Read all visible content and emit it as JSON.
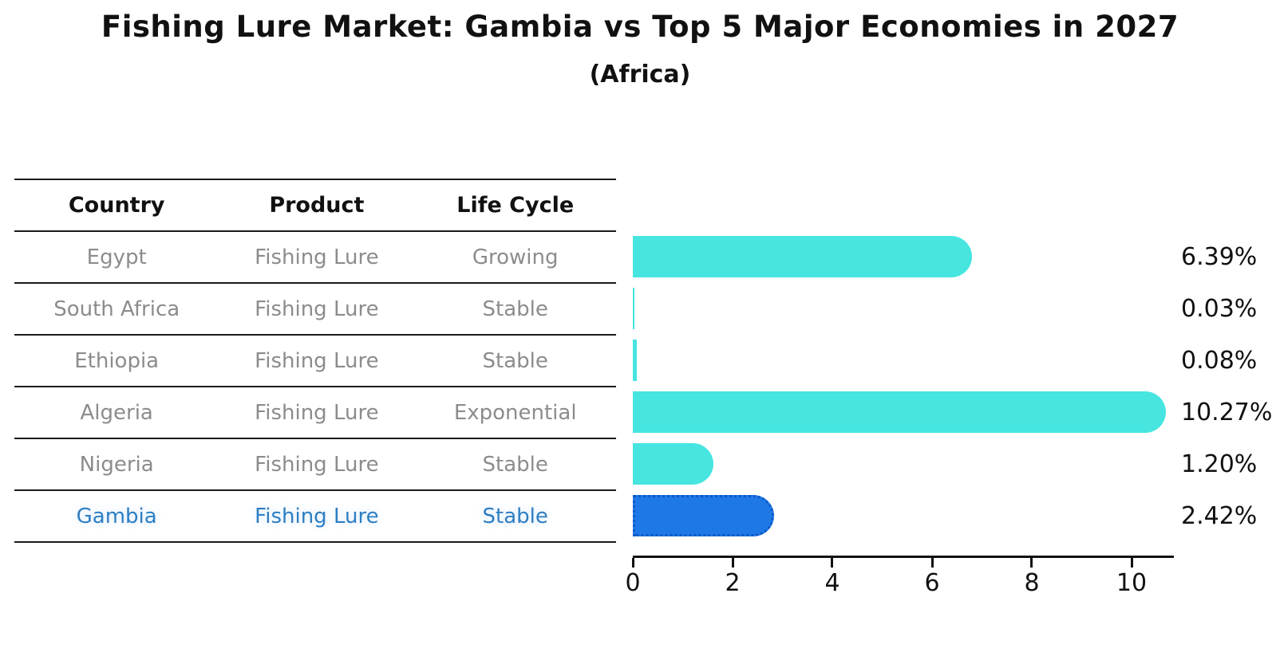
{
  "title": "Fishing Lure Market: Gambia vs Top 5 Major Economies in 2027",
  "subtitle": "(Africa)",
  "table": {
    "headers": [
      "Country",
      "Product",
      "Life Cycle"
    ],
    "rows": [
      {
        "country": "Egypt",
        "product": "Fishing Lure",
        "life_cycle": "Growing",
        "highlighted": false
      },
      {
        "country": "South Africa",
        "product": "Fishing Lure",
        "life_cycle": "Stable",
        "highlighted": false
      },
      {
        "country": "Ethiopia",
        "product": "Fishing Lure",
        "life_cycle": "Stable",
        "highlighted": false
      },
      {
        "country": "Algeria",
        "product": "Fishing Lure",
        "life_cycle": "Exponential",
        "highlighted": false
      },
      {
        "country": "Nigeria",
        "product": "Fishing Lure",
        "life_cycle": "Stable",
        "highlighted": false
      },
      {
        "country": "Gambia",
        "product": "Fishing Lure",
        "life_cycle": "Stable",
        "highlighted": true
      }
    ]
  },
  "chart_data": {
    "type": "bar",
    "orientation": "horizontal",
    "title": "Fishing Lure Market: Gambia vs Top 5 Major Economies in 2027",
    "subtitle": "(Africa)",
    "categories": [
      "Egypt",
      "South Africa",
      "Ethiopia",
      "Algeria",
      "Nigeria",
      "Gambia"
    ],
    "values": [
      6.39,
      0.03,
      0.08,
      10.27,
      1.2,
      2.42
    ],
    "value_labels": [
      "6.39%",
      "0.03%",
      "0.08%",
      "10.27%",
      "1.20%",
      "2.42%"
    ],
    "xlabel": "",
    "ylabel": "",
    "xlim": [
      0,
      10.8
    ],
    "x_ticks": [
      0,
      2,
      4,
      6,
      8,
      10
    ],
    "grid": false,
    "legend": "none",
    "highlight_category": "Gambia",
    "colors": {
      "bar_default": "#46e5e0",
      "bar_highlight": "#1e79e6",
      "bar_highlight_border": "#1058c8",
      "highlight_text": "#2e7ec2",
      "row_text": "#8c8c8c",
      "header_text": "#111111",
      "axis": "#111111"
    }
  }
}
